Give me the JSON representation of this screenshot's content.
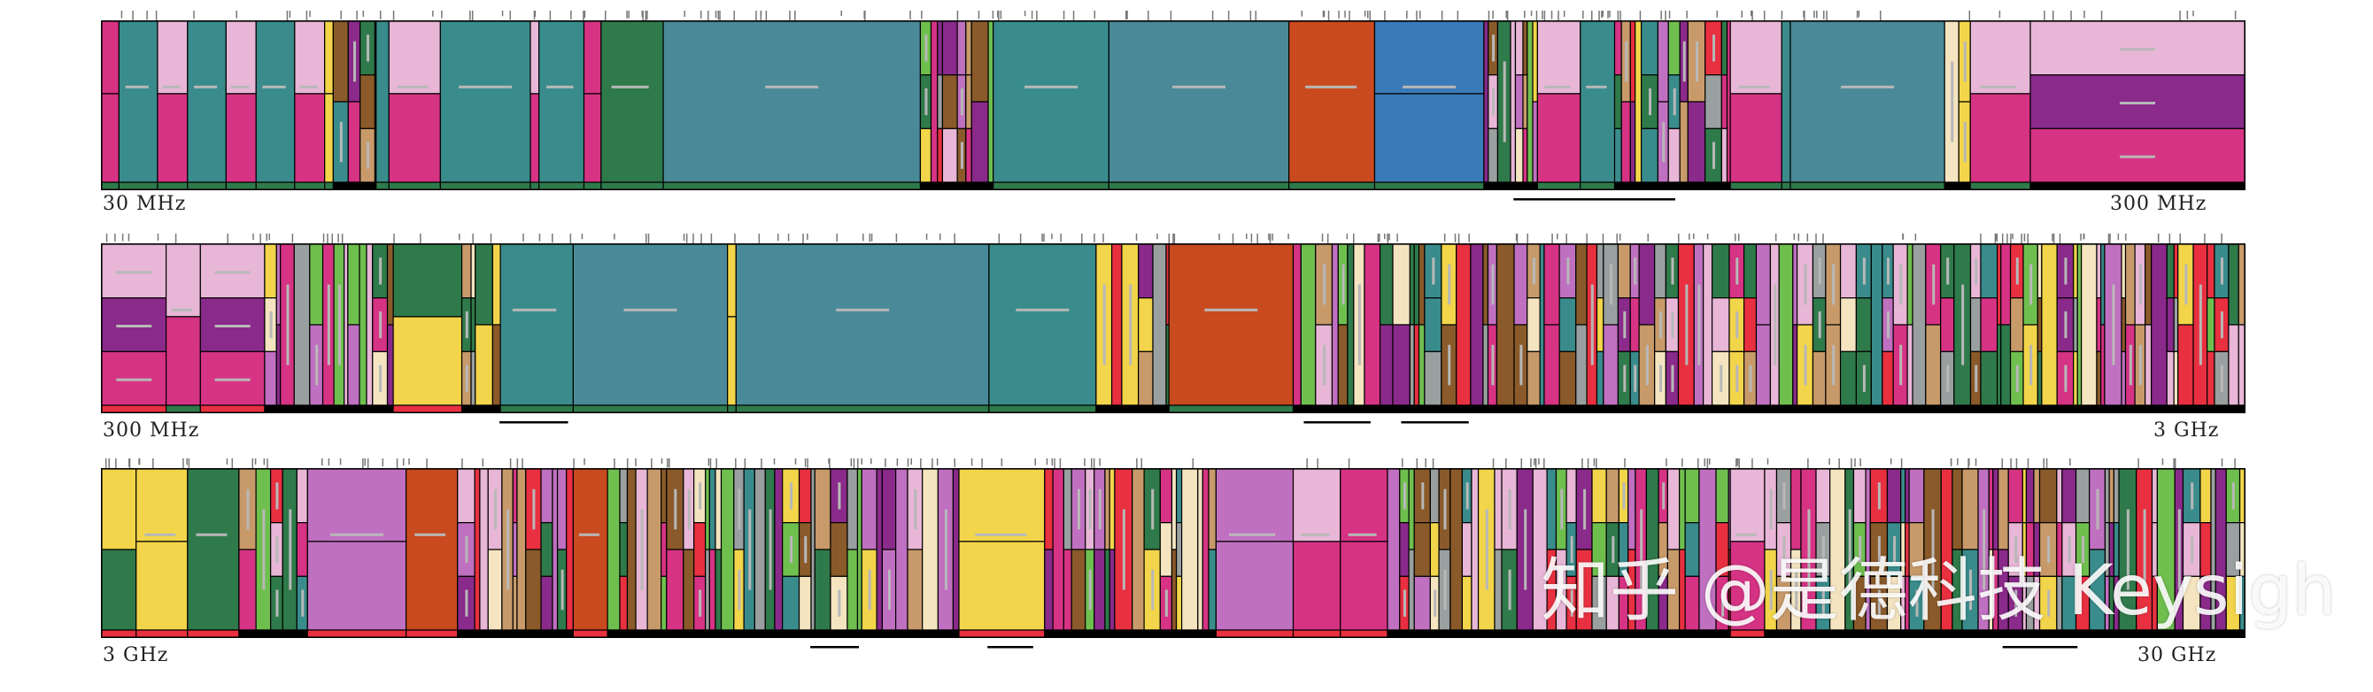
{
  "chart_data": {
    "type": "heatmap",
    "title": "",
    "rows": [
      {
        "start_label": "30 MHz",
        "end_label": "300 MHz",
        "dense_bands": 34
      },
      {
        "start_label": "300 MHz",
        "end_label": "3 GHz",
        "dense_bands": 58
      },
      {
        "start_label": "3 GHz",
        "end_label": "30 GHz",
        "dense_bands": 70
      }
    ],
    "colors": {
      "teal": "#3a8c8c",
      "steel": "#4a8a98",
      "magenta": "#d63384",
      "pink": "#e8b6d6",
      "yellow": "#f2d54a",
      "green": "#2f7a4a",
      "orange": "#c84a1e",
      "purple": "#8a2a8a",
      "blue": "#3a7ab8",
      "lightgreen": "#6fbf4f",
      "tan": "#c89a6a",
      "brown": "#8a5a2a",
      "gray": "#9aa0a0",
      "orchid": "#c070c0",
      "cream": "#f4e4c0",
      "red": "#e83040",
      "black": "#000000"
    }
  },
  "watermark": "知乎 @是德科技 Keysigh"
}
